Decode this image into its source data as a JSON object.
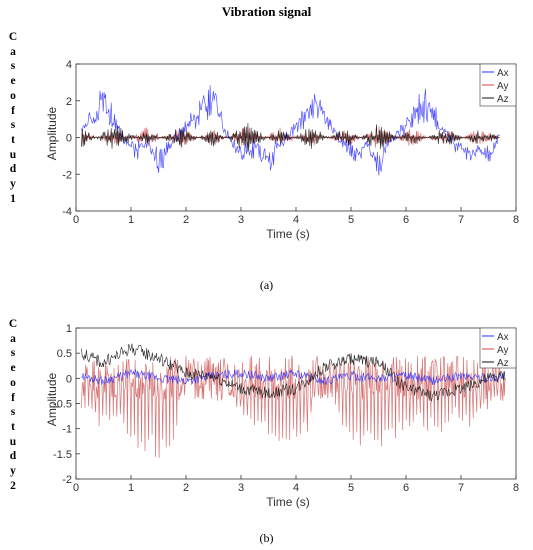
{
  "header": {
    "title": "Vibration signal"
  },
  "case_labels": [
    [
      "C",
      "a",
      "s",
      "e",
      "o",
      "f",
      "s",
      "t",
      "u",
      "d",
      "y",
      "1"
    ],
    [
      "C",
      "a",
      "s",
      "e",
      "o",
      "f",
      "s",
      "t",
      "u",
      "d",
      "y",
      "2"
    ]
  ],
  "captions": [
    "(a)",
    "(b)"
  ],
  "colors": {
    "Ax": "#2b2bff",
    "Ay": "#c84646",
    "Az": "#111111"
  },
  "chart_data": [
    {
      "type": "line",
      "title": "",
      "xlabel": "Time (s)",
      "ylabel": "Amplitude",
      "xlim": [
        0,
        8
      ],
      "ylim": [
        -4,
        4
      ],
      "xticks": [
        0,
        1,
        2,
        3,
        4,
        5,
        6,
        7,
        8
      ],
      "yticks": [
        -4,
        -2,
        0,
        2,
        4
      ],
      "legend": "top-right",
      "grid": false,
      "series": [
        {
          "name": "Ax",
          "x": [
            0.1,
            0.3,
            0.5,
            0.7,
            0.9,
            1.1,
            1.3,
            1.5,
            1.7,
            1.9,
            2.1,
            2.3,
            2.5,
            2.7,
            2.9,
            3.1,
            3.3,
            3.5,
            3.7,
            3.9,
            4.1,
            4.3,
            4.5,
            4.7,
            4.9,
            5.1,
            5.3,
            5.5,
            5.7,
            5.9,
            6.1,
            6.3,
            6.5,
            6.7,
            6.9,
            7.1,
            7.3,
            7.5,
            7.7
          ],
          "y": [
            0.5,
            1.6,
            2.8,
            1.2,
            -0.4,
            -1.0,
            -0.6,
            -2.3,
            -0.5,
            0.3,
            1.2,
            2.6,
            3.1,
            0.8,
            -0.9,
            -1.3,
            -0.8,
            -2.2,
            -0.6,
            0.4,
            1.4,
            2.6,
            2.0,
            0.4,
            -0.7,
            -1.4,
            -0.6,
            -2.3,
            -0.3,
            0.4,
            1.6,
            2.7,
            1.8,
            0.3,
            -0.6,
            -1.2,
            -1.0,
            -1.5,
            0.1
          ]
        },
        {
          "name": "Ay",
          "x": [
            0.1,
            0.7,
            1.3,
            1.9,
            2.5,
            3.1,
            3.7,
            4.3,
            4.9,
            5.5,
            6.1,
            6.7,
            7.3,
            7.7
          ],
          "y": [
            0.5,
            -0.5,
            0.6,
            -0.6,
            0.5,
            -0.7,
            0.6,
            -0.5,
            0.6,
            -0.7,
            0.6,
            -0.6,
            0.5,
            0.1
          ]
        },
        {
          "name": "Az",
          "x": [
            0.1,
            0.7,
            1.3,
            1.9,
            2.5,
            3.1,
            3.7,
            4.3,
            4.9,
            5.5,
            6.1,
            6.7,
            7.3,
            7.7
          ],
          "y": [
            0.6,
            -0.8,
            0.4,
            -0.6,
            0.5,
            -0.9,
            0.5,
            -0.7,
            0.6,
            -0.8,
            0.5,
            -0.6,
            0.4,
            0.1
          ]
        }
      ]
    },
    {
      "type": "line",
      "title": "",
      "xlabel": "Time (s)",
      "ylabel": "Amplitude",
      "xlim": [
        0,
        8
      ],
      "ylim": [
        -2,
        1
      ],
      "xticks": [
        0,
        1,
        2,
        3,
        4,
        5,
        6,
        7,
        8
      ],
      "yticks": [
        -2,
        -1.5,
        -1,
        -0.5,
        0,
        0.5,
        1
      ],
      "legend": "top-right",
      "grid": false,
      "series": [
        {
          "name": "Ax",
          "x": [
            0.1,
            0.5,
            1.0,
            1.5,
            2.0,
            2.5,
            3.0,
            3.5,
            4.0,
            4.5,
            5.0,
            5.5,
            6.0,
            6.5,
            7.0,
            7.5,
            7.8
          ],
          "y": [
            0.05,
            -0.05,
            0.1,
            0.0,
            -0.05,
            0.05,
            0.1,
            0.0,
            0.1,
            -0.05,
            0.05,
            0.0,
            0.05,
            -0.05,
            0.05,
            0.0,
            0.05
          ]
        },
        {
          "name": "Ay",
          "x": [
            0.1,
            0.4,
            0.7,
            1.0,
            1.3,
            1.6,
            1.8,
            2.0,
            2.5,
            3.0,
            3.3,
            3.6,
            3.9,
            4.2,
            4.5,
            4.8,
            5.0,
            5.3,
            5.6,
            5.9,
            6.2,
            6.6,
            6.9,
            7.2,
            7.5,
            7.8
          ],
          "y": [
            -0.6,
            -1.0,
            -0.8,
            -1.3,
            -1.5,
            -1.65,
            -1.2,
            0.3,
            0.4,
            -0.8,
            -1.0,
            -1.2,
            -1.5,
            -1.1,
            0.2,
            -0.9,
            -1.5,
            -1.4,
            -1.5,
            -1.1,
            -0.9,
            -1.2,
            -0.8,
            -1.0,
            -0.6,
            0.0
          ]
        },
        {
          "name": "Az",
          "x": [
            0.1,
            0.5,
            1.0,
            1.5,
            2.0,
            2.5,
            3.0,
            3.5,
            4.0,
            4.5,
            5.0,
            5.5,
            6.0,
            6.5,
            7.0,
            7.5,
            7.8
          ],
          "y": [
            0.5,
            0.3,
            0.6,
            0.4,
            0.1,
            0.05,
            -0.2,
            -0.3,
            -0.2,
            0.2,
            0.4,
            0.3,
            -0.2,
            -0.35,
            -0.2,
            0.0,
            0.05
          ]
        }
      ]
    }
  ]
}
